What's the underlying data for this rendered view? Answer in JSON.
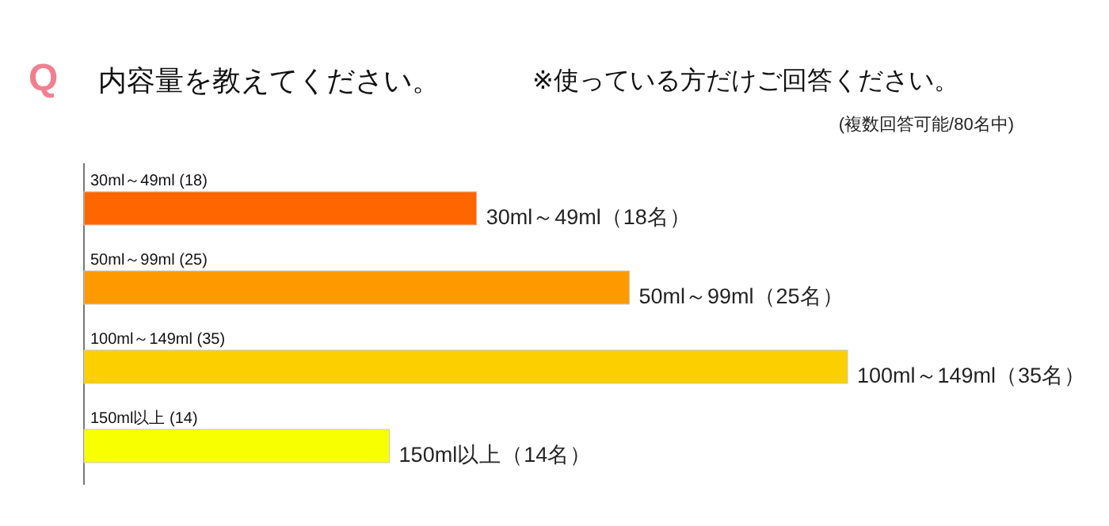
{
  "chart_data": {
    "type": "bar",
    "orientation": "horizontal",
    "title": "内容量を教えてください。",
    "subtitle": "※使っている方だけご回答ください。",
    "categories": [
      "30ml～49ml",
      "50ml～99ml",
      "100ml～149ml",
      "150ml以上"
    ],
    "values": [
      18,
      25,
      35,
      14
    ],
    "colors": [
      "#ff6600",
      "#ff9900",
      "#fcd000",
      "#f8ff00"
    ],
    "value_labels": [
      "(18)",
      "(25)",
      "(35)",
      "(14)"
    ],
    "annotations": [
      "Q",
      "(複数回答可能/80名中)",
      {
        "text": "30ml～49ml（18名）",
        "x": 18,
        "y": "30ml～49ml"
      },
      {
        "text": "50ml～99ml（25名）",
        "x": 25,
        "y": "50ml～99ml"
      },
      {
        "text": "100ml～149ml（35名）",
        "x": 35,
        "y": "100ml～149ml"
      },
      {
        "text": "150ml以上（14名）",
        "x": 14,
        "y": "150ml以上"
      }
    ]
  }
}
